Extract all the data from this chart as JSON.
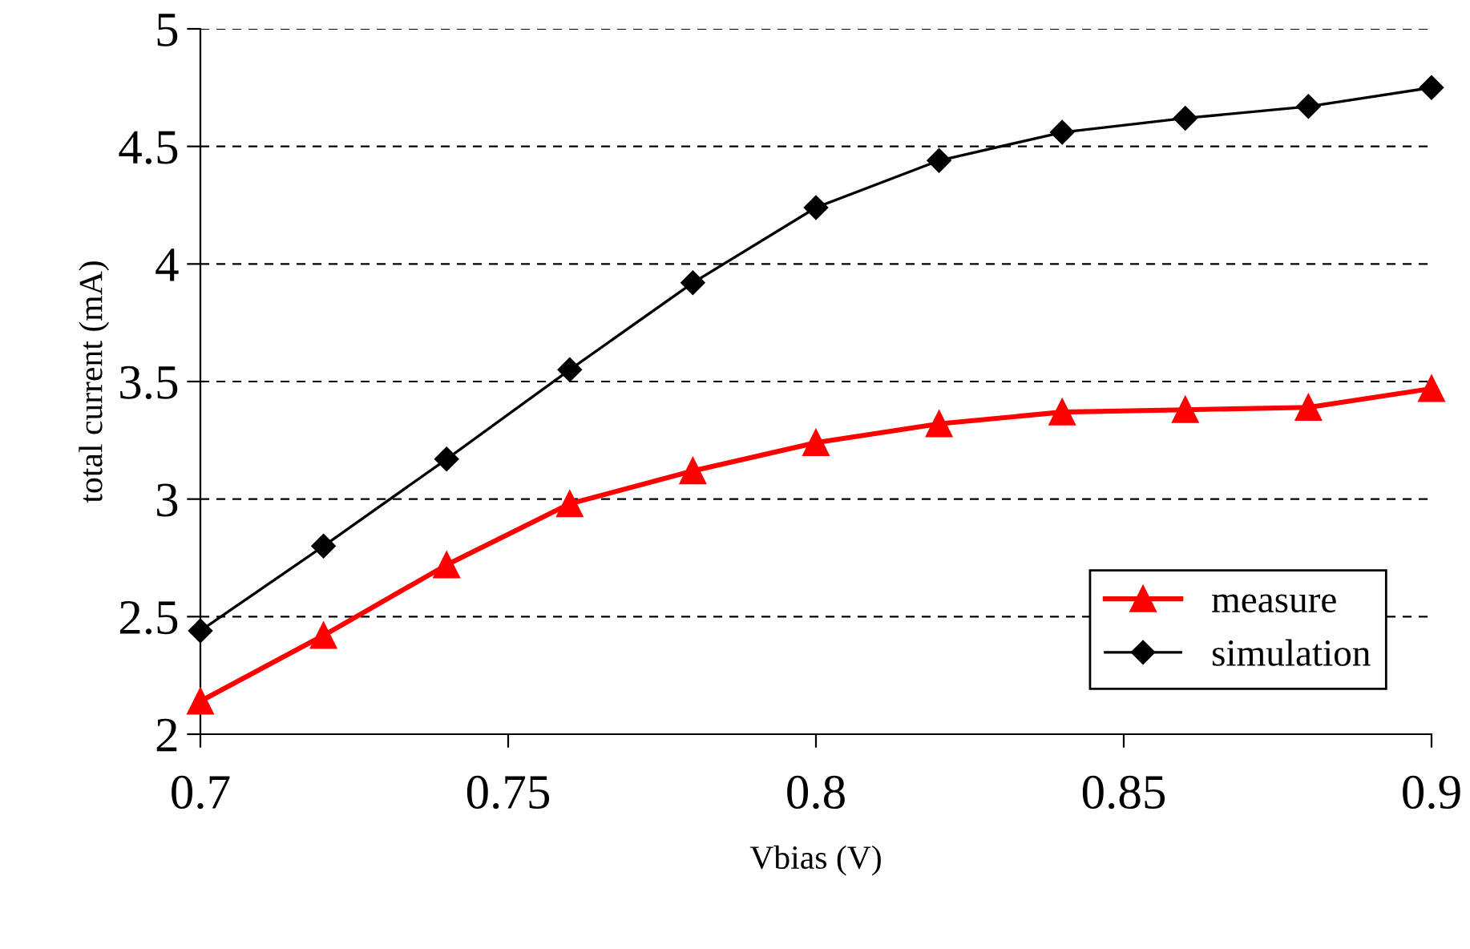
{
  "chart_data": {
    "type": "line",
    "xlabel": "Vbias (V)",
    "ylabel": "total current (mA)",
    "x": [
      0.7,
      0.72,
      0.74,
      0.76,
      0.78,
      0.8,
      0.82,
      0.84,
      0.86,
      0.88,
      0.9
    ],
    "series": [
      {
        "name": "measure",
        "color": "#ff0000",
        "marker": "triangle",
        "values": [
          2.14,
          2.42,
          2.72,
          2.98,
          3.12,
          3.24,
          3.32,
          3.37,
          3.38,
          3.39,
          3.47
        ]
      },
      {
        "name": "simulation",
        "color": "#000000",
        "marker": "diamond",
        "values": [
          2.44,
          2.8,
          3.17,
          3.55,
          3.92,
          4.24,
          4.44,
          4.56,
          4.62,
          4.67,
          4.75
        ]
      }
    ],
    "xlim": [
      0.7,
      0.9
    ],
    "xticks": [
      0.7,
      0.75,
      0.8,
      0.85,
      0.9
    ],
    "ylim": [
      2,
      5
    ],
    "yticks": [
      2,
      2.5,
      3,
      3.5,
      4,
      4.5,
      5
    ],
    "grid": "y",
    "legend": "bottom right",
    "line_style": "solid"
  }
}
